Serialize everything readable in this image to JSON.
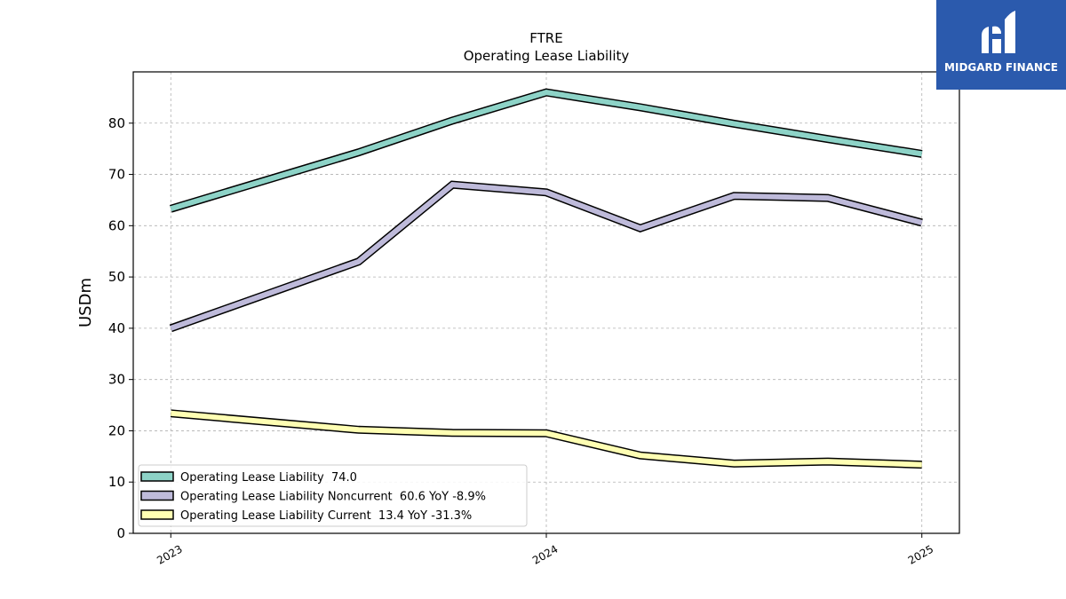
{
  "chart_data": {
    "type": "line",
    "title": "FTRE",
    "subtitle": "Operating Lease Liability",
    "xlabel": "",
    "ylabel": "USDm",
    "xlim": [
      2022.9,
      2025.1
    ],
    "ylim": [
      0,
      90
    ],
    "x_ticks": [
      {
        "value": 2023,
        "label": "2023"
      },
      {
        "value": 2024,
        "label": "2024"
      },
      {
        "value": 2025,
        "label": "2025"
      }
    ],
    "y_ticks": [
      0,
      10,
      20,
      30,
      40,
      50,
      60,
      70,
      80
    ],
    "grid": true,
    "legend_position": "lower-left",
    "series": [
      {
        "name": "Operating Lease Liability",
        "legend_label": "Operating Lease Liability  74.0",
        "color": "#8dd3c7",
        "x": [
          2023.0,
          2023.5,
          2023.75,
          2024.0,
          2024.25,
          2024.5,
          2024.75,
          2025.0
        ],
        "values": [
          63.3,
          74.3,
          80.5,
          86.0,
          83.1,
          79.9,
          76.9,
          74.0
        ]
      },
      {
        "name": "Operating Lease Liability Noncurrent",
        "legend_label": "Operating Lease Liability Noncurrent  60.6 YoY -8.9%",
        "color": "#bebada",
        "x": [
          2023.0,
          2023.5,
          2023.75,
          2024.0,
          2024.25,
          2024.5,
          2024.75,
          2025.0
        ],
        "values": [
          40.0,
          53.0,
          68.0,
          66.5,
          59.5,
          65.8,
          65.4,
          60.6
        ]
      },
      {
        "name": "Operating Lease Liability Current",
        "legend_label": "Operating Lease Liability Current  13.4 YoY -31.3%",
        "color": "#ffffb3",
        "x": [
          2023.0,
          2023.5,
          2023.75,
          2024.0,
          2024.25,
          2024.5,
          2024.75,
          2025.0
        ],
        "values": [
          23.4,
          20.2,
          19.6,
          19.5,
          15.2,
          13.6,
          14.0,
          13.4
        ]
      }
    ]
  },
  "logo": {
    "text": "MIDGARD FINANCE",
    "background": "#2b5aad"
  }
}
